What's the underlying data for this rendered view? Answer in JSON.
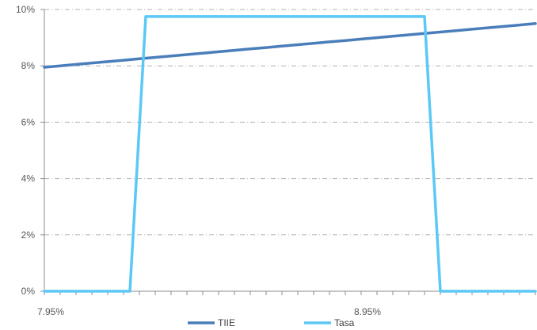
{
  "chart_data": {
    "type": "line",
    "title": "",
    "xlabel": "",
    "ylabel": "",
    "x": [
      7.95,
      8.0,
      8.05,
      8.1,
      8.15,
      8.2,
      8.25,
      8.3,
      8.35,
      8.4,
      8.45,
      8.5,
      8.55,
      8.6,
      8.65,
      8.7,
      8.75,
      8.8,
      8.85,
      8.9,
      8.95,
      9.0,
      9.05,
      9.1,
      9.15,
      9.2,
      9.25,
      9.3,
      9.35,
      9.4,
      9.45,
      9.5
    ],
    "xlim": [
      7.95,
      9.5
    ],
    "x_tick_labels": [
      {
        "x": 7.95,
        "label": "7.95%"
      },
      {
        "x": 8.95,
        "label": "8.95%"
      }
    ],
    "x_minor_ticks": 31,
    "ylim": [
      0,
      10
    ],
    "y_ticks": [
      0,
      2,
      4,
      6,
      8,
      10
    ],
    "y_tick_labels": [
      "0%",
      "2%",
      "4%",
      "6%",
      "8%",
      "10%"
    ],
    "grid": "horizontal dashed",
    "legend_position": "bottom",
    "series": [
      {
        "name": "TIIE",
        "color": "#4a7ebb",
        "values": [
          7.95,
          8.0,
          8.05,
          8.1,
          8.15,
          8.2,
          8.25,
          8.3,
          8.35,
          8.4,
          8.45,
          8.5,
          8.55,
          8.6,
          8.65,
          8.7,
          8.75,
          8.8,
          8.85,
          8.9,
          8.95,
          9.0,
          9.05,
          9.1,
          9.15,
          9.2,
          9.25,
          9.3,
          9.35,
          9.4,
          9.45,
          9.5
        ]
      },
      {
        "name": "Tasa",
        "color": "#5bc8f5",
        "step_points": [
          {
            "x": 7.95,
            "y": 0
          },
          {
            "x": 8.22,
            "y": 0
          },
          {
            "x": 8.27,
            "y": 9.75
          },
          {
            "x": 9.15,
            "y": 9.75
          },
          {
            "x": 9.2,
            "y": 0
          },
          {
            "x": 9.5,
            "y": 0
          }
        ]
      }
    ]
  }
}
